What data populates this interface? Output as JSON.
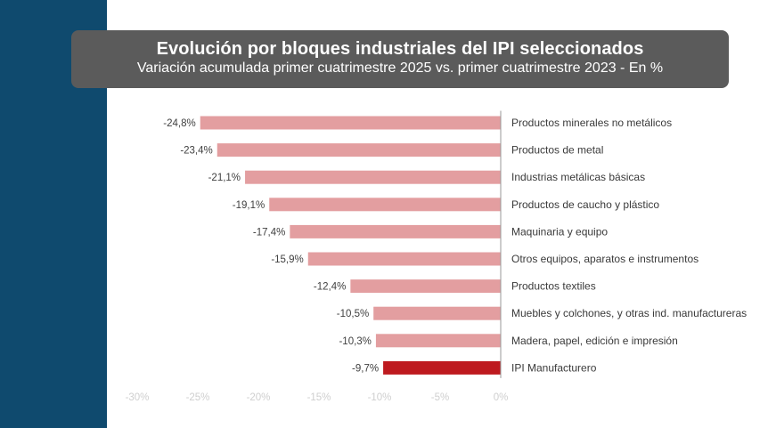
{
  "header": {
    "title": "Evolución por bloques industriales del IPI seleccionados",
    "subtitle": "Variación acumulada primer cuatrimestre 2025 vs. primer cuatrimestre 2023 - En %"
  },
  "colors": {
    "band": "#0f4a6e",
    "header_bg": "#5b5b5b",
    "bar": "#e39ea0",
    "bar_highlight": "#be1a1f",
    "axis": "#9a9a9a"
  },
  "chart_data": {
    "type": "bar",
    "orientation": "horizontal",
    "title": "Evolución por bloques industriales del IPI seleccionados",
    "subtitle": "Variación acumulada primer cuatrimestre 2025 vs. primer cuatrimestre 2023 - En %",
    "categories": [
      "Productos minerales no metálicos",
      "Productos de metal",
      "Industrias metálicas básicas",
      "Productos de caucho y plástico",
      "Maquinaria y equipo",
      "Otros equipos, aparatos e instrumentos",
      "Productos textiles",
      "Muebles y colchones, y otras ind. manufactureras",
      "Madera, papel, edición e impresión",
      "IPI Manufacturero"
    ],
    "values": [
      -24.8,
      -23.4,
      -21.1,
      -19.1,
      -17.4,
      -15.9,
      -12.4,
      -10.5,
      -10.3,
      -9.7
    ],
    "value_labels": [
      "-24,8%",
      "-23,4%",
      "-21,1%",
      "-19,1%",
      "-17,4%",
      "-15,9%",
      "-12,4%",
      "-10,5%",
      "-10,3%",
      "-9,7%"
    ],
    "highlight_index": 9,
    "xlim": [
      -30,
      0
    ],
    "xticks": [
      -30,
      -25,
      -20,
      -15,
      -10,
      -5,
      0
    ],
    "xtick_labels": [
      "-30%",
      "-25%",
      "-20%",
      "-15%",
      "-10%",
      "-5%",
      "0%"
    ],
    "grid": false,
    "legend": "none"
  }
}
